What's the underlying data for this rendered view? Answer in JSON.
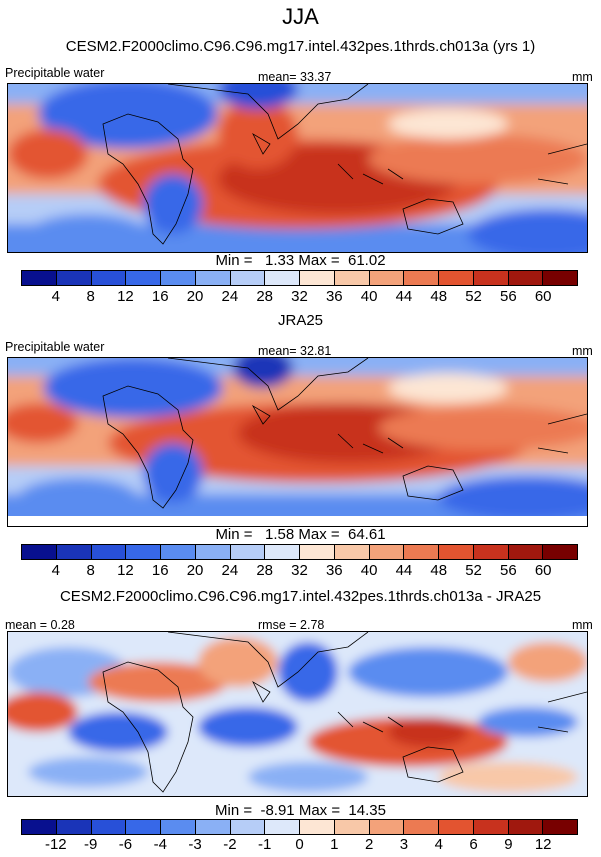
{
  "title": "JJA",
  "panels": [
    {
      "title": "CESM2.F2000climo.C96.C96.mg17.intel.432pes.1thrds.ch013a (yrs 1)",
      "left_label": "Precipitable water",
      "center_label": "mean=  33.37",
      "units": "mm",
      "minmax": "Min =   1.33 Max =  61.02",
      "colorbar": {
        "ticks": [
          "4",
          "8",
          "12",
          "16",
          "20",
          "24",
          "28",
          "32",
          "36",
          "40",
          "44",
          "48",
          "52",
          "56",
          "60"
        ],
        "colors": [
          "#08108f",
          "#1a34b8",
          "#2850d8",
          "#3768e8",
          "#5a8cf0",
          "#8ab0f5",
          "#b6cdf7",
          "#dde8fa",
          "#fde6d4",
          "#f8c8a8",
          "#f3a27a",
          "#ec7a52",
          "#e35430",
          "#c8321e",
          "#a0180e",
          "#780000"
        ]
      }
    },
    {
      "title": "JRA25",
      "left_label": "Precipitable water",
      "center_label": "mean=  32.81",
      "units": "mm",
      "minmax": "Min =   1.58 Max =  64.61",
      "colorbar": {
        "ticks": [
          "4",
          "8",
          "12",
          "16",
          "20",
          "24",
          "28",
          "32",
          "36",
          "40",
          "44",
          "48",
          "52",
          "56",
          "60"
        ],
        "colors": [
          "#08108f",
          "#1a34b8",
          "#2850d8",
          "#3768e8",
          "#5a8cf0",
          "#8ab0f5",
          "#b6cdf7",
          "#dde8fa",
          "#fde6d4",
          "#f8c8a8",
          "#f3a27a",
          "#ec7a52",
          "#e35430",
          "#c8321e",
          "#a0180e",
          "#780000"
        ]
      }
    },
    {
      "title": "CESM2.F2000climo.C96.C96.mg17.intel.432pes.1thrds.ch013a - JRA25",
      "left_label": "mean =   0.28",
      "center_label": "rmse =   2.78",
      "units": "mm",
      "minmax": "Min =  -8.91 Max =  14.35",
      "colorbar": {
        "ticks": [
          "-12",
          "-9",
          "-6",
          "-4",
          "-3",
          "-2",
          "-1",
          "0",
          "1",
          "2",
          "3",
          "4",
          "6",
          "9",
          "12"
        ],
        "colors": [
          "#08108f",
          "#1a34b8",
          "#2850d8",
          "#3768e8",
          "#5a8cf0",
          "#8ab0f5",
          "#b6cdf7",
          "#dde8fa",
          "#fde6d4",
          "#f8c8a8",
          "#f3a27a",
          "#ec7a52",
          "#e35430",
          "#c8321e",
          "#a0180e",
          "#780000"
        ]
      }
    }
  ]
}
